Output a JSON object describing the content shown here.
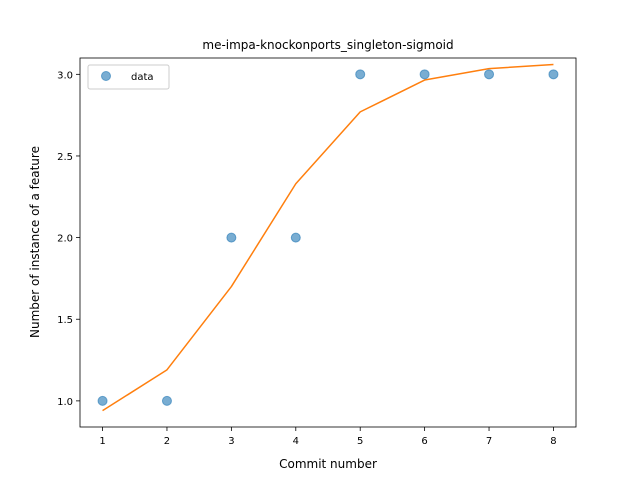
{
  "chart_data": {
    "type": "scatter",
    "title": "me-impa-knockonports_singleton-sigmoid",
    "xlabel": "Commit number",
    "ylabel": "Number of instance of a feature",
    "xlim": [
      0.65,
      8.35
    ],
    "ylim": [
      0.84,
      3.1
    ],
    "xticks": [
      1,
      2,
      3,
      4,
      5,
      6,
      7,
      8
    ],
    "xtick_labels": [
      "1",
      "2",
      "3",
      "4",
      "5",
      "6",
      "7",
      "8"
    ],
    "yticks": [
      1.0,
      1.5,
      2.0,
      2.5,
      3.0
    ],
    "ytick_labels": [
      "1.0",
      "1.5",
      "2.0",
      "2.5",
      "3.0"
    ],
    "grid": false,
    "legend": {
      "position": "top-left",
      "entries": [
        "data"
      ]
    },
    "series": [
      {
        "name": "data",
        "kind": "scatter",
        "color": "#1f77b4",
        "x": [
          1,
          2,
          3,
          4,
          5,
          6,
          7,
          8
        ],
        "y": [
          1.0,
          1.0,
          2.0,
          2.0,
          3.0,
          3.0,
          3.0,
          3.0
        ]
      },
      {
        "kind": "line",
        "color": "#ff7f0e",
        "x": [
          1,
          2,
          3,
          4,
          5,
          6,
          7,
          8
        ],
        "y": [
          0.94,
          1.19,
          1.7,
          2.33,
          2.77,
          2.965,
          3.035,
          3.06
        ]
      }
    ]
  }
}
